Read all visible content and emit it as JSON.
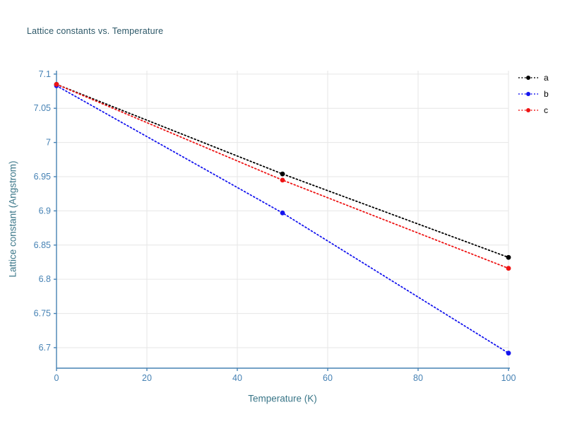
{
  "chart_data": {
    "type": "line",
    "title": "Lattice constants vs. Temperature",
    "xlabel": "Temperature (K)",
    "ylabel": "Lattice constant (Angstrom)",
    "x": [
      0,
      50,
      100
    ],
    "series": [
      {
        "name": "a",
        "color": "#000000",
        "values": [
          7.085,
          6.954,
          6.832
        ]
      },
      {
        "name": "b",
        "color": "#1414ee",
        "values": [
          7.083,
          6.897,
          6.692
        ]
      },
      {
        "name": "c",
        "color": "#ee1414",
        "values": [
          7.085,
          6.945,
          6.816
        ]
      }
    ],
    "xlim": [
      0,
      100
    ],
    "ylim": [
      6.67,
      7.105
    ],
    "xticks": [
      0,
      20,
      40,
      60,
      80,
      100
    ],
    "xtick_labels": [
      "0",
      "20",
      "40",
      "60",
      "80",
      "100"
    ],
    "yticks": [
      6.7,
      6.75,
      6.8,
      6.85,
      6.9,
      6.95,
      7.0,
      7.05,
      7.1
    ],
    "ytick_labels": [
      "6.7",
      "6.75",
      "6.8",
      "6.85",
      "6.9",
      "6.95",
      "7",
      "7.05",
      "7.1"
    ],
    "grid": true,
    "line_style": "dotted",
    "marker": "circle",
    "legend_position": "top-right",
    "legend_labels": [
      "a",
      "b",
      "c"
    ]
  },
  "colors": {
    "background": "#ffffff",
    "grid": "#e6e6e6",
    "axis": "#4682b4",
    "tick_text": "#4682b4",
    "title_text": "#2d5868",
    "axis_label_text": "#3a7688",
    "legend_text": "#000000"
  }
}
